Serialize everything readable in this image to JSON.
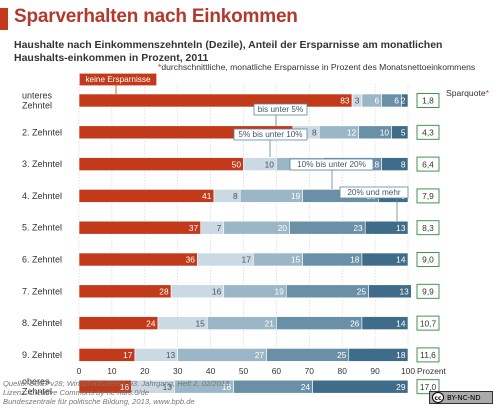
{
  "title": "Sparverhalten nach Einkommen",
  "subtitle": "Haushalte nach Einkommenszehnteln (Dezile), Anteil der Ersparnisse am monatlichen Haushalts-einkommen in Prozent, 2011",
  "legend_note": "durchschnittliche, monatliche Ersparnisse in Prozent des Monatsnettoeinkommens",
  "legend_note_star": "*",
  "sparquote_label": "Sparquote",
  "sparquote_star": "*",
  "source_lines": [
    "Quelle: SOEPv28; Wirtschaftsdienst, 93. Jahrgang, Heft 2, 02/2013",
    "Lizenz: Creative Commons by-nc-nd/3.0/de",
    "Bundeszentrale für politische Bildung, 2013, www.bpb.de"
  ],
  "license_badge": "BY-NC-ND",
  "license_icon": "cc",
  "colors": {
    "title": "#b03a2e",
    "keine": "#c23a1a",
    "bis5": "#cad9e2",
    "s5_10": "#9bb6c6",
    "s10_20": "#6a90a8",
    "s20plus": "#3f6c88",
    "sparquote_box": "#2f8a3a",
    "callout_red": "#c23a1a",
    "callout_blue": "#5a87a2"
  },
  "chart_data": {
    "type": "bar",
    "orientation": "horizontal",
    "stacked": true,
    "title": "Sparverhalten nach Einkommen",
    "xlabel": "Prozent",
    "xlim": [
      0,
      100
    ],
    "x_ticks": [
      0,
      10,
      20,
      30,
      40,
      50,
      60,
      70,
      80,
      90,
      100
    ],
    "categories": [
      "unteres Zehntel",
      "2. Zehntel",
      "3. Zehntel",
      "4. Zehntel",
      "5. Zehntel",
      "6. Zehntel",
      "7. Zehntel",
      "8. Zehntel",
      "9. Zehntel",
      "oberes Zehntel"
    ],
    "series": [
      {
        "name": "keine Ersparnisse",
        "values": [
          83,
          65,
          50,
          41,
          37,
          36,
          28,
          24,
          17,
          16
        ]
      },
      {
        "name": "bis unter 5%",
        "values": [
          3,
          8,
          10,
          8,
          7,
          17,
          16,
          15,
          13,
          13
        ]
      },
      {
        "name": "5% bis unter 10%",
        "values": [
          6,
          12,
          14,
          19,
          20,
          15,
          19,
          21,
          27,
          18
        ]
      },
      {
        "name": "10% bis unter 20%",
        "values": [
          6,
          10,
          18,
          23,
          23,
          18,
          25,
          26,
          25,
          24
        ]
      },
      {
        "name": "20% und mehr",
        "values": [
          2,
          5,
          8,
          9,
          13,
          14,
          13,
          14,
          18,
          29
        ]
      }
    ],
    "sparquote": {
      "name": "Sparquote",
      "values": [
        "1,8",
        "4,3",
        "6,4",
        "7,9",
        "8,3",
        "9,0",
        "9,9",
        "10,7",
        "11,6",
        "17,0"
      ]
    },
    "grid": true,
    "legend_position": "callouts"
  }
}
